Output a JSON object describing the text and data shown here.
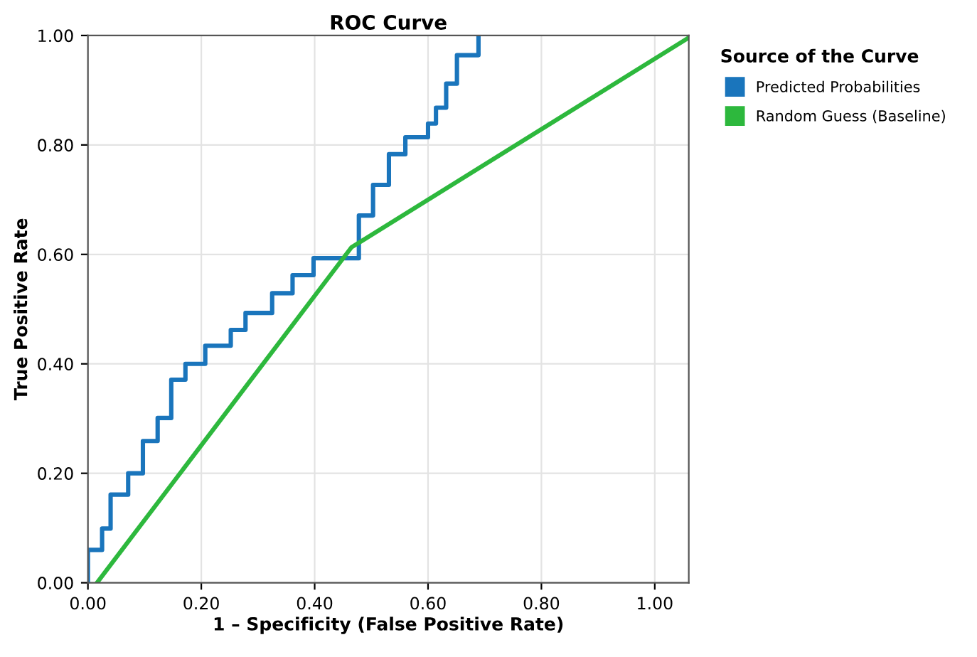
{
  "chart_data": {
    "type": "line",
    "title": "ROC Curve",
    "xlabel": "1 – Specificity (False Positive Rate)",
    "ylabel": "True Positive Rate",
    "legend_title": "Source of the Curve",
    "legend": "top right",
    "grid": true,
    "marker": "none",
    "line_style": "solid",
    "xlim": [
      0,
      1.06
    ],
    "ylim": [
      0,
      1.0
    ],
    "xticks": [
      {
        "value": 0,
        "label": "0.00"
      },
      {
        "value": 0.2,
        "label": "0.20"
      },
      {
        "value": 0.4,
        "label": "0.40"
      },
      {
        "value": 0.6,
        "label": "0.60"
      },
      {
        "value": 0.8,
        "label": "0.80"
      },
      {
        "value": 1.0,
        "label": "1.00"
      }
    ],
    "yticks": [
      {
        "value": 0,
        "label": "0.00"
      },
      {
        "value": 0.2,
        "label": "0.20"
      },
      {
        "value": 0.4,
        "label": "0.40"
      },
      {
        "value": 0.6,
        "label": "0.60"
      },
      {
        "value": 0.8,
        "label": "0.80"
      },
      {
        "value": 1.0,
        "label": "1.00"
      }
    ],
    "series": [
      {
        "name": "Predicted Probabilities",
        "type": "step",
        "color": "#1a75bc",
        "x": [
          0,
          0,
          0.025,
          0.04,
          0.071,
          0.097,
          0.123,
          0.147,
          0.172,
          0.207,
          0.252,
          0.278,
          0.325,
          0.361,
          0.398,
          0.478,
          0.503,
          0.531,
          0.56,
          0.6,
          0.614,
          0.632,
          0.651,
          0.689
        ],
        "values": [
          0,
          0.06,
          0.099,
          0.161,
          0.2,
          0.259,
          0.301,
          0.371,
          0.4,
          0.433,
          0.462,
          0.493,
          0.529,
          0.562,
          0.593,
          0.671,
          0.727,
          0.783,
          0.814,
          0.839,
          0.868,
          0.912,
          0.964,
          1.0
        ]
      },
      {
        "name": "Random Guess (Baseline)",
        "color": "#2db83d",
        "x": [
          0.016,
          0.465,
          1.06
        ],
        "values": [
          0,
          0.613,
          0.996
        ]
      }
    ]
  }
}
